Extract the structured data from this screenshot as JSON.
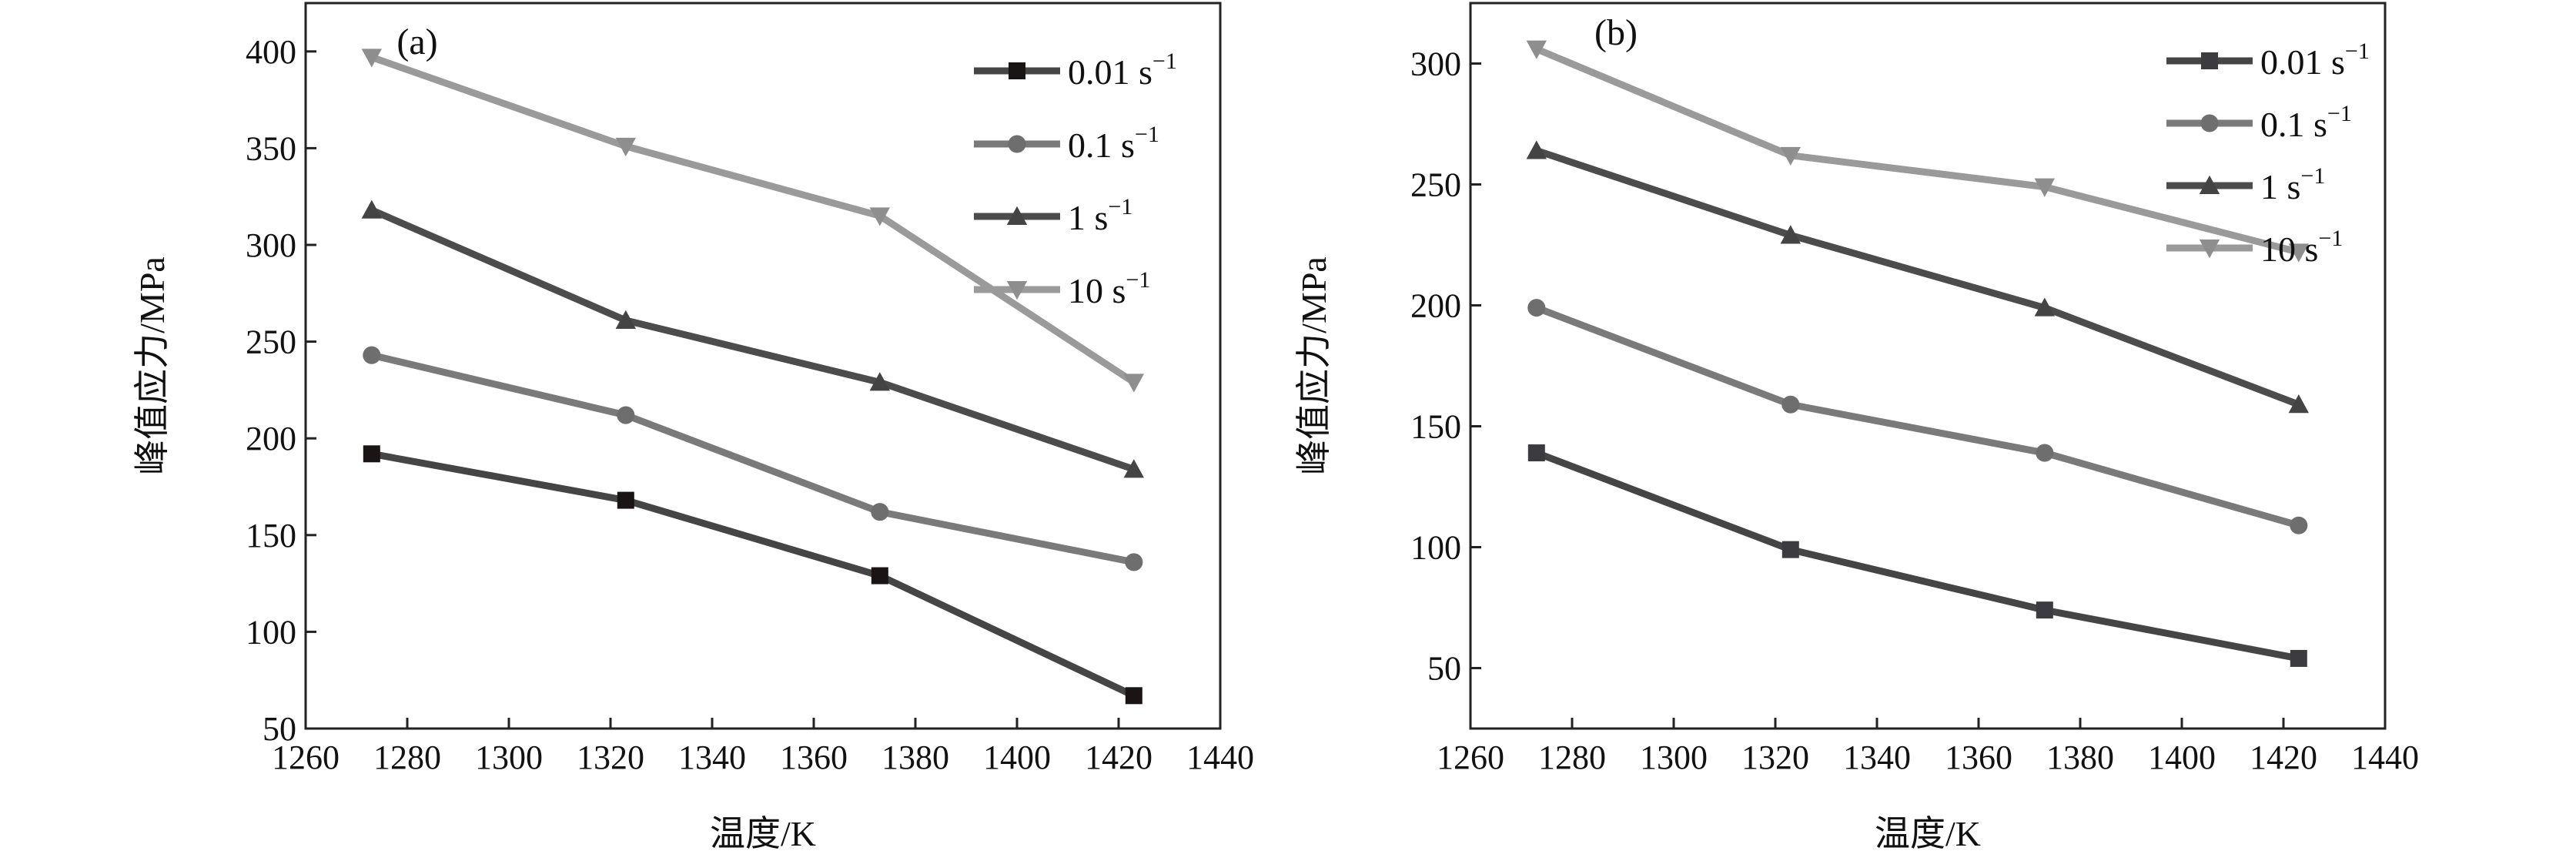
{
  "chart_data": [
    {
      "type": "line",
      "panel_label": "(a)",
      "xlabel": "温度/K",
      "ylabel": "峰值应力/MPa",
      "xlim": [
        1260,
        1440
      ],
      "ylim": [
        50,
        425
      ],
      "xticks": [
        1260,
        1280,
        1300,
        1320,
        1340,
        1360,
        1380,
        1400,
        1420,
        1440
      ],
      "yticks": [
        50,
        100,
        150,
        200,
        250,
        300,
        350,
        400
      ],
      "grid": false,
      "legend_position": "top-right",
      "x": [
        1273,
        1323,
        1373,
        1423
      ],
      "series": [
        {
          "name": "0.01 s",
          "sup": "−1",
          "marker": "square",
          "color": "#454545",
          "marker_color": "#1a1414",
          "values": [
            192,
            168,
            129,
            67
          ]
        },
        {
          "name": "0.1 s",
          "sup": "−1",
          "marker": "circle",
          "color": "#7a7a7a",
          "marker_color": "#6e6e6e",
          "values": [
            243,
            212,
            162,
            136
          ]
        },
        {
          "name": "1 s",
          "sup": "−1",
          "marker": "triangle-up",
          "color": "#4c4c4c",
          "marker_color": "#444444",
          "values": [
            318,
            261,
            229,
            184
          ]
        },
        {
          "name": "10 s",
          "sup": "−1",
          "marker": "triangle-down",
          "color": "#9a9a9a",
          "marker_color": "#8e8e8e",
          "values": [
            397,
            351,
            315,
            229
          ]
        }
      ]
    },
    {
      "type": "line",
      "panel_label": "(b)",
      "xlabel": "温度/K",
      "ylabel": "峰值应力/MPa",
      "xlim": [
        1260,
        1440
      ],
      "ylim": [
        25,
        325
      ],
      "xticks": [
        1260,
        1280,
        1300,
        1320,
        1340,
        1360,
        1380,
        1400,
        1420,
        1440
      ],
      "yticks": [
        50,
        100,
        150,
        200,
        250,
        300
      ],
      "grid": false,
      "legend_position": "top-right",
      "x": [
        1273,
        1323,
        1373,
        1423
      ],
      "series": [
        {
          "name": "0.01 s",
          "sup": "−1",
          "marker": "square",
          "color": "#454545",
          "marker_color": "#3c3c40",
          "values": [
            139,
            99,
            74,
            54
          ]
        },
        {
          "name": "0.1 s",
          "sup": "−1",
          "marker": "circle",
          "color": "#7a7a7a",
          "marker_color": "#6e6e6e",
          "values": [
            199,
            159,
            139,
            109
          ]
        },
        {
          "name": "1 s",
          "sup": "−1",
          "marker": "triangle-up",
          "color": "#4c4c4c",
          "marker_color": "#444444",
          "values": [
            264,
            229,
            199,
            159
          ]
        },
        {
          "name": "10 s",
          "sup": "−1",
          "marker": "triangle-down",
          "color": "#9a9a9a",
          "marker_color": "#8e8e8e",
          "values": [
            306,
            262,
            249,
            222
          ]
        }
      ]
    }
  ]
}
